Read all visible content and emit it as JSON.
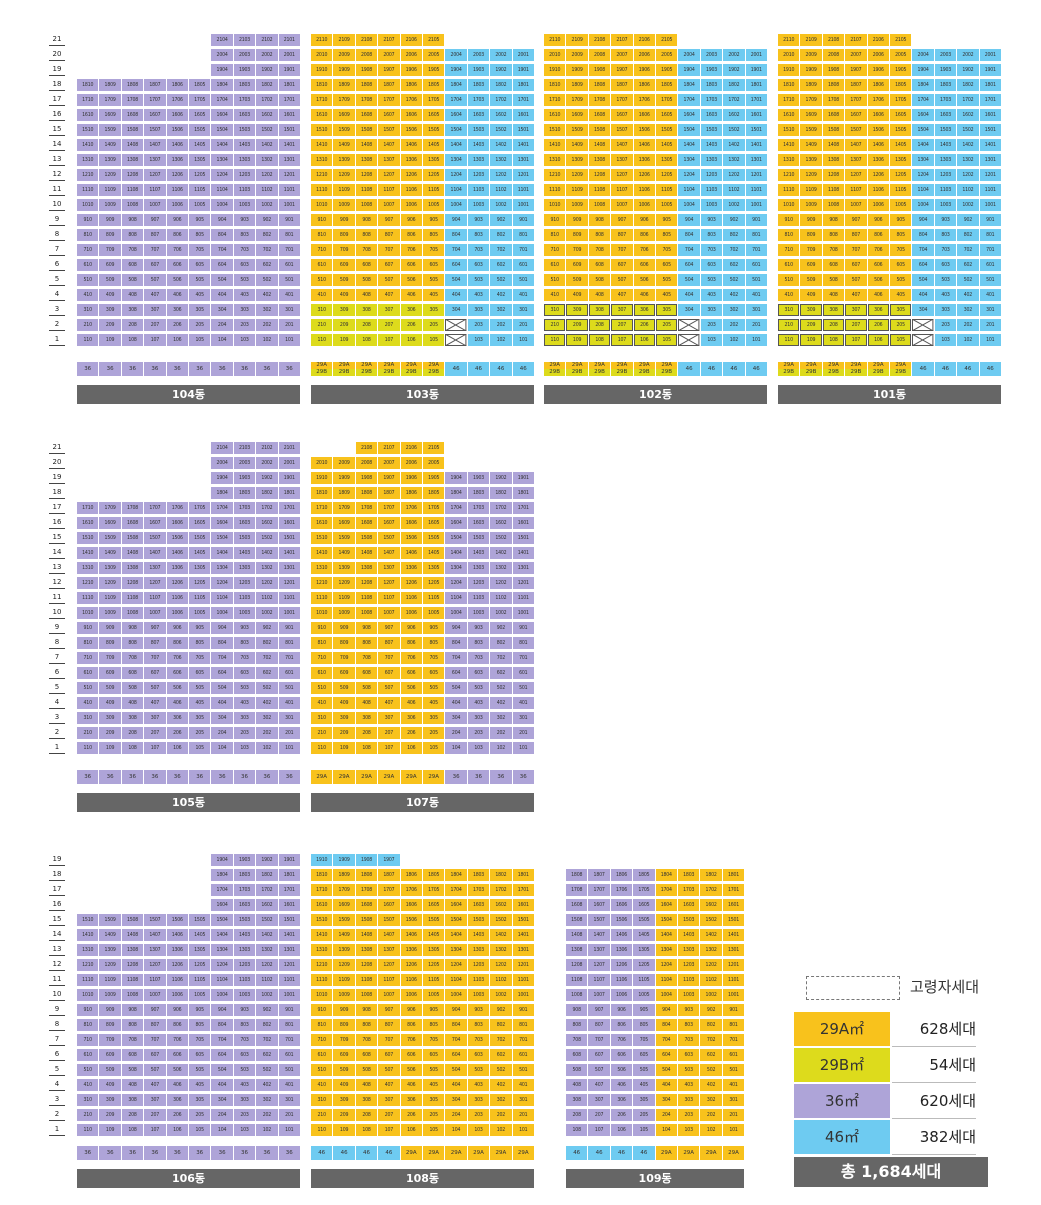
{
  "colors": {
    "29A": "#f8c21c",
    "29B": "#dddb1c",
    "36": "#aea4d8",
    "46": "#6ecbf1",
    "bar": "#666666"
  },
  "buildings": [
    {
      "name": "104동",
      "block": "top",
      "col": 0,
      "top_floor": 21,
      "rows": [
        {
          "floor": 21,
          "cols": "6-9",
          "type": "36"
        },
        {
          "floor": 20,
          "cols": "6-9",
          "type": "36"
        },
        {
          "floor": 19,
          "cols": "6-9",
          "type": "36"
        },
        {
          "floor": 18,
          "cols": "0-9",
          "type": "36"
        }
      ],
      "base_floors": 17,
      "base_type": "36",
      "bottom_types": [
        "36",
        "36",
        "36",
        "36",
        "36",
        "36",
        "36",
        "36",
        "36",
        "36"
      ]
    },
    {
      "name": "103동",
      "block": "top",
      "col": 1,
      "top_floor": 21,
      "rows": [
        {
          "floor": 21,
          "cols": "0-5",
          "type": "29A"
        }
      ],
      "base_floors": 20,
      "mixed": true,
      "bottom_types": [
        "29A/29B",
        "29A/29B",
        "29A/29B",
        "29A/29B",
        "29A/29B",
        "29A/29B",
        "46",
        "46",
        "46",
        "46"
      ]
    },
    {
      "name": "102동",
      "block": "top",
      "col": 2,
      "top_floor": 21,
      "rows": [
        {
          "floor": 21,
          "cols": "0-5",
          "type": "29A"
        }
      ],
      "base_floors": 20,
      "mixed": true,
      "elder": true,
      "bottom_types": [
        "29A/29B",
        "29A/29B",
        "29A/29B",
        "29A/29B",
        "29A/29B",
        "29A/29B",
        "46",
        "46",
        "46",
        "46"
      ]
    },
    {
      "name": "101동",
      "block": "top",
      "col": 3,
      "top_floor": 21,
      "rows": [
        {
          "floor": 21,
          "cols": "0-5",
          "type": "29A"
        }
      ],
      "base_floors": 20,
      "mixed": true,
      "elder": true,
      "bottom_types": [
        "29A/29B",
        "29A/29B",
        "29A/29B",
        "29A/29B",
        "29A/29B",
        "29A/29B",
        "46",
        "46",
        "46",
        "46"
      ]
    },
    {
      "name": "105동",
      "block": "mid",
      "col": 0,
      "top_floor": 21,
      "rows": [
        {
          "floor": 21,
          "cols": "6-9",
          "type": "36"
        },
        {
          "floor": 20,
          "cols": "6-9",
          "type": "36"
        },
        {
          "floor": 19,
          "cols": "6-9",
          "type": "36"
        },
        {
          "floor": 18,
          "cols": "6-9",
          "type": "36"
        }
      ],
      "base_floors": 17,
      "base_type": "36",
      "bottom_types": [
        "36",
        "36",
        "36",
        "36",
        "36",
        "36",
        "36",
        "36",
        "36",
        "36"
      ]
    },
    {
      "name": "107동",
      "block": "mid",
      "col": 1,
      "top_floor": 21,
      "rows": [
        {
          "floor": 21,
          "cols": "2-5",
          "type": "29A"
        },
        {
          "floor": 20,
          "cols": "0-5",
          "type": "29A"
        }
      ],
      "base_floors": 19,
      "mixed107": true,
      "bottom_types": [
        "29A",
        "29A",
        "29A",
        "29A",
        "29A",
        "29A",
        "36",
        "36",
        "36",
        "36"
      ]
    },
    {
      "name": "106동",
      "block": "bot",
      "col": 0,
      "top_floor": 19,
      "rows": [
        {
          "floor": 19,
          "cols": "6-9",
          "type": "36"
        },
        {
          "floor": 18,
          "cols": "6-9",
          "type": "36"
        },
        {
          "floor": 17,
          "cols": "6-9",
          "type": "36"
        },
        {
          "floor": 16,
          "cols": "6-9",
          "type": "36"
        }
      ],
      "base_floors": 15,
      "base_type": "36",
      "bottom_types": [
        "36",
        "36",
        "36",
        "36",
        "36",
        "36",
        "36",
        "36",
        "36",
        "36"
      ]
    },
    {
      "name": "108동",
      "block": "bot",
      "col": 1,
      "top_floor": 19,
      "rows": [
        {
          "floor": 19,
          "cols": "0-3",
          "type": "46"
        }
      ],
      "base_floors": 18,
      "mixed108": true,
      "bottom_types": [
        "46",
        "46",
        "46",
        "46",
        "29A",
        "29A",
        "29A",
        "29A",
        "29A",
        "29A"
      ]
    },
    {
      "name": "109동",
      "block": "bot",
      "col": 2,
      "top_floor": 18,
      "rows": [],
      "base_floors": 18,
      "mixed109": true,
      "bottom_types": [
        "46",
        "46",
        "46",
        "46",
        "29A",
        "29A",
        "29A",
        "29A"
      ]
    }
  ],
  "floor_labels_top": [
    "21",
    "20",
    "19",
    "18",
    "17",
    "16",
    "15",
    "14",
    "13",
    "12",
    "11",
    "10",
    "9",
    "8",
    "7",
    "6",
    "5",
    "4",
    "3",
    "2",
    "1"
  ],
  "floor_labels_bot": [
    "19",
    "18",
    "17",
    "16",
    "15",
    "14",
    "13",
    "12",
    "11",
    "10",
    "9",
    "8",
    "7",
    "6",
    "5",
    "4",
    "3",
    "2",
    "1"
  ],
  "legend": {
    "elder_label": "고령자세대",
    "items": [
      {
        "type": "29A㎡",
        "count": "628세대",
        "key": "29A"
      },
      {
        "type": "29B㎡",
        "count": "54세대",
        "key": "29B"
      },
      {
        "type": "36㎡",
        "count": "620세대",
        "key": "36"
      },
      {
        "type": "46㎡",
        "count": "382세대",
        "key": "46"
      }
    ],
    "total": "총 1,684세대"
  }
}
